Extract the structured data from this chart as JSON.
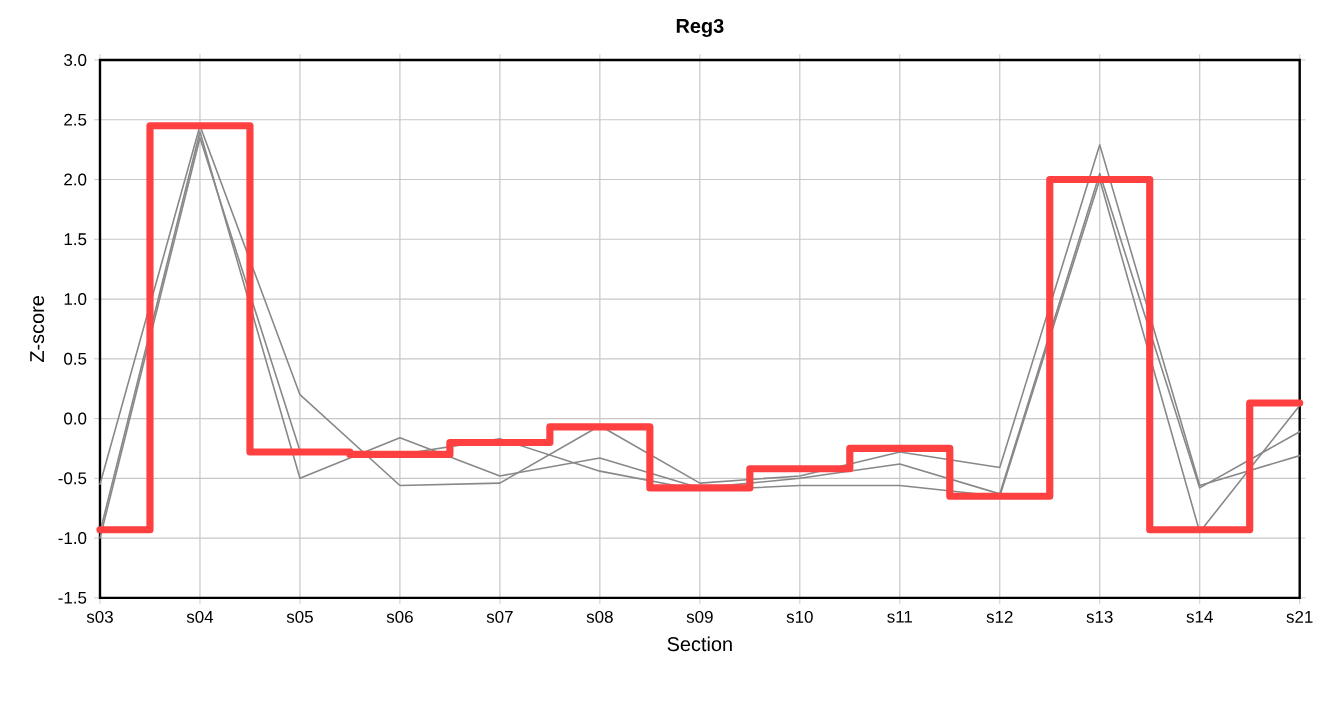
{
  "chart_data": {
    "type": "line",
    "title": "Reg3",
    "xlabel": "Section",
    "ylabel": "Z-score",
    "categories": [
      "s03",
      "s04",
      "s05",
      "s06",
      "s07",
      "s08",
      "s09",
      "s10",
      "s11",
      "s12",
      "s13",
      "s14",
      "s21"
    ],
    "series": [
      {
        "color": "#888888",
        "values": [
          -0.55,
          2.45,
          0.2,
          -0.56,
          -0.54,
          -0.06,
          -0.54,
          -0.48,
          -0.28,
          -0.41,
          2.29,
          -0.56,
          -0.31
        ]
      },
      {
        "color": "#888888",
        "values": [
          -0.95,
          2.4,
          -0.5,
          -0.16,
          -0.48,
          -0.33,
          -0.58,
          -0.5,
          -0.38,
          -0.63,
          2.05,
          -0.58,
          -0.11
        ]
      },
      {
        "color": "#888888",
        "values": [
          -1.0,
          2.35,
          -0.27,
          -0.3,
          -0.17,
          -0.44,
          -0.6,
          -0.56,
          -0.56,
          -0.65,
          2.0,
          -0.95,
          0.11
        ]
      },
      {
        "type": "step",
        "color": "#ff4040",
        "values": [
          -0.93,
          2.45,
          -0.28,
          -0.3,
          -0.2,
          -0.07,
          -0.58,
          -0.42,
          -0.25,
          -0.65,
          2.0,
          -0.93,
          0.13
        ]
      }
    ],
    "ylim": [
      -1.5,
      3.0
    ],
    "yticks": [
      {
        "value": -1.5,
        "label": "-1.5"
      },
      {
        "value": -1.0,
        "label": "-1.0"
      },
      {
        "value": -0.5,
        "label": "-0.5"
      },
      {
        "value": 0,
        "label": "0.0"
      },
      {
        "value": 0.5,
        "label": "0.5"
      },
      {
        "value": 1.0,
        "label": "1.0"
      },
      {
        "value": 1.5,
        "label": "1.5"
      },
      {
        "value": 2.0,
        "label": "2.0"
      },
      {
        "value": 2.5,
        "label": "2.5"
      },
      {
        "value": 3.0,
        "label": "3.0"
      }
    ],
    "grid": true,
    "marker": "none"
  }
}
